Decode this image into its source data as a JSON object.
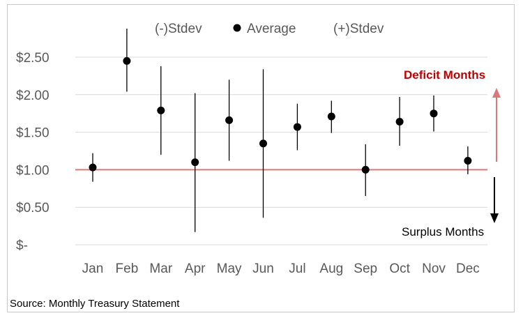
{
  "chart_data": {
    "type": "scatter",
    "categories": [
      "Jan",
      "Feb",
      "Mar",
      "Apr",
      "May",
      "Jun",
      "Jul",
      "Aug",
      "Sep",
      "Oct",
      "Nov",
      "Dec"
    ],
    "series": [
      {
        "name": "Average",
        "values": [
          1.03,
          2.45,
          1.79,
          1.1,
          1.66,
          1.35,
          1.57,
          1.71,
          1.0,
          1.64,
          1.75,
          1.12
        ]
      },
      {
        "name": "(-)Stdev",
        "values": [
          0.84,
          2.04,
          1.2,
          0.17,
          1.12,
          0.36,
          1.26,
          1.49,
          0.65,
          1.32,
          1.51,
          0.94
        ]
      },
      {
        "name": "(+)Stdev",
        "values": [
          1.22,
          2.88,
          2.38,
          2.02,
          2.2,
          2.34,
          1.88,
          1.92,
          1.34,
          1.97,
          1.99,
          1.31
        ]
      }
    ],
    "yticks": [
      0,
      0.5,
      1.0,
      1.5,
      2.0,
      2.5
    ],
    "ytick_labels": [
      "$-",
      "$0.50",
      "$1.00",
      "$1.50",
      "$2.00",
      "$2.50"
    ],
    "ylim": [
      0,
      3.0
    ],
    "reference_line": 1.0,
    "grid": true,
    "legend": [
      "(-)Stdev",
      "Average",
      "(+)Stdev"
    ],
    "legend_position": "top-center",
    "annotations": {
      "deficit": "Deficit Months",
      "surplus": "Surplus Months"
    }
  },
  "source": "Source: Monthly Treasury Statement",
  "colors": {
    "reference": "#d9777a",
    "deficit": "#c00000",
    "deficit_arrow": "#d9777a",
    "surplus_arrow": "#000000",
    "grid": "#d9d9d9",
    "marker": "#000000"
  }
}
